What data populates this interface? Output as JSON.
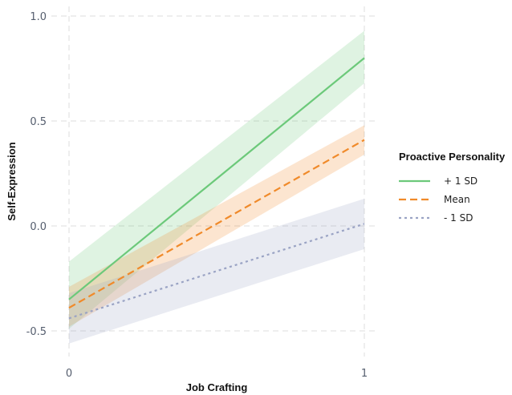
{
  "chart_data": {
    "type": "line",
    "title": "",
    "xlabel": "Job Crafting",
    "ylabel": "Self-Expression",
    "xlim": [
      0,
      1
    ],
    "ylim": [
      -0.5,
      1.0
    ],
    "x_ticks": [
      0,
      1
    ],
    "x_tick_labels": [
      "0",
      "1"
    ],
    "y_ticks": [
      -0.5,
      0.0,
      0.5,
      1.0
    ],
    "y_tick_labels": [
      "-0.5",
      "0.0",
      "0.5",
      "1.0"
    ],
    "grid": true,
    "legend": {
      "title": "Proactive Personality",
      "position": "right"
    },
    "series": [
      {
        "name": "+ 1 SD",
        "color": "#6cc97a",
        "line_style": "solid",
        "x": [
          0,
          1
        ],
        "y": [
          -0.35,
          0.8
        ],
        "ci_lower": [
          -0.49,
          0.68
        ],
        "ci_upper": [
          -0.17,
          0.93
        ]
      },
      {
        "name": "Mean",
        "color": "#f08a2a",
        "line_style": "dashed",
        "x": [
          0,
          1
        ],
        "y": [
          -0.39,
          0.41
        ],
        "ci_lower": [
          -0.48,
          0.34
        ],
        "ci_upper": [
          -0.29,
          0.48
        ]
      },
      {
        "name": "- 1 SD",
        "color": "#9aa3c4",
        "line_style": "dotted",
        "x": [
          0,
          1
        ],
        "y": [
          -0.44,
          0.01
        ],
        "ci_lower": [
          -0.56,
          -0.11
        ],
        "ci_upper": [
          -0.32,
          0.13
        ]
      }
    ]
  }
}
